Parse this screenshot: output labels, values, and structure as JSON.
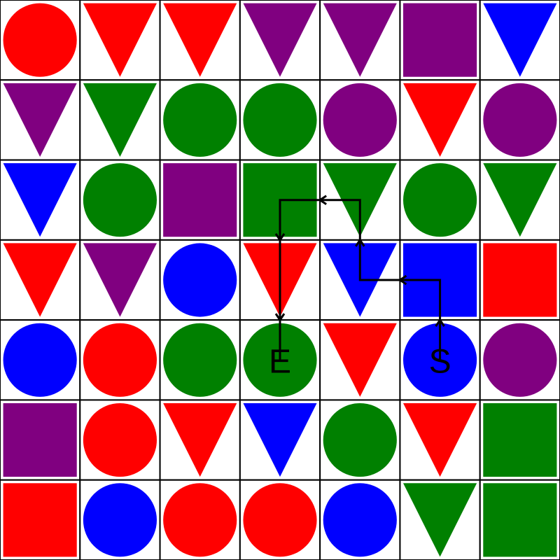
{
  "puzzle": {
    "rows": 7,
    "cols": 7,
    "colors": {
      "red": "#ff0000",
      "green": "#008000",
      "blue": "#0000ff",
      "purple": "#800080",
      "grid": "#000000",
      "background": "#ffffff",
      "path": "#000000"
    },
    "grid": [
      [
        [
          "circle",
          "red"
        ],
        [
          "triangle",
          "red"
        ],
        [
          "triangle",
          "red"
        ],
        [
          "triangle",
          "purple"
        ],
        [
          "triangle",
          "purple"
        ],
        [
          "square",
          "purple"
        ],
        [
          "triangle",
          "blue"
        ]
      ],
      [
        [
          "triangle",
          "purple"
        ],
        [
          "triangle",
          "green"
        ],
        [
          "circle",
          "green"
        ],
        [
          "circle",
          "green"
        ],
        [
          "circle",
          "purple"
        ],
        [
          "triangle",
          "red"
        ],
        [
          "circle",
          "purple"
        ]
      ],
      [
        [
          "triangle",
          "blue"
        ],
        [
          "circle",
          "green"
        ],
        [
          "square",
          "purple"
        ],
        [
          "square",
          "green"
        ],
        [
          "triangle",
          "green"
        ],
        [
          "circle",
          "green"
        ],
        [
          "triangle",
          "green"
        ]
      ],
      [
        [
          "triangle",
          "red"
        ],
        [
          "triangle",
          "purple"
        ],
        [
          "circle",
          "blue"
        ],
        [
          "triangle",
          "red"
        ],
        [
          "triangle",
          "blue"
        ],
        [
          "square",
          "blue"
        ],
        [
          "square",
          "red"
        ]
      ],
      [
        [
          "circle",
          "blue"
        ],
        [
          "circle",
          "red"
        ],
        [
          "circle",
          "green"
        ],
        [
          "circle",
          "green"
        ],
        [
          "triangle",
          "red"
        ],
        [
          "circle",
          "blue"
        ],
        [
          "circle",
          "purple"
        ]
      ],
      [
        [
          "square",
          "purple"
        ],
        [
          "circle",
          "red"
        ],
        [
          "triangle",
          "red"
        ],
        [
          "triangle",
          "blue"
        ],
        [
          "circle",
          "green"
        ],
        [
          "triangle",
          "red"
        ],
        [
          "square",
          "green"
        ]
      ],
      [
        [
          "square",
          "red"
        ],
        [
          "circle",
          "blue"
        ],
        [
          "circle",
          "red"
        ],
        [
          "circle",
          "red"
        ],
        [
          "circle",
          "blue"
        ],
        [
          "triangle",
          "green"
        ],
        [
          "square",
          "green"
        ]
      ]
    ],
    "start": {
      "label": "S",
      "row": 4,
      "col": 5
    },
    "end": {
      "label": "E",
      "row": 4,
      "col": 3
    },
    "path": [
      [
        4,
        5
      ],
      [
        3,
        5
      ],
      [
        3,
        4
      ],
      [
        2,
        4
      ],
      [
        2,
        3
      ],
      [
        3,
        3
      ],
      [
        4,
        3
      ]
    ]
  }
}
